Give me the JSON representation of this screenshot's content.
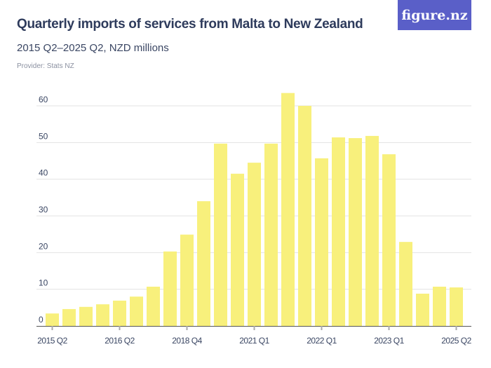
{
  "header": {
    "title": "Quarterly imports of services from Malta to New Zealand",
    "subtitle": "2015 Q2–2025 Q2, NZD millions",
    "provider": "Provider: Stats NZ",
    "logo": "figure.nz"
  },
  "colors": {
    "bar": "#f8f07c",
    "grid": "#e3e3e3",
    "axis": "#555555",
    "logo_bg": "#5a5fc8",
    "text": "#2e3b5c"
  },
  "chart_data": {
    "type": "bar",
    "title": "Quarterly imports of services from Malta to New Zealand",
    "subtitle": "2015 Q2–2025 Q2, NZD millions",
    "xlabel": "",
    "ylabel": "",
    "ylim": [
      0,
      65
    ],
    "yticks": [
      0,
      10,
      20,
      30,
      40,
      50,
      60
    ],
    "grid": true,
    "categories": [
      "2015 Q2",
      "",
      "",
      "",
      "2016 Q2",
      "",
      "",
      "",
      "2018 Q4",
      "",
      "",
      "",
      "2021 Q1",
      "",
      "",
      "",
      "2022 Q1",
      "",
      "",
      "",
      "2023 Q1",
      "",
      "",
      "",
      "2025 Q2"
    ],
    "values": [
      3.4,
      4.6,
      5.2,
      5.9,
      6.9,
      8.0,
      10.7,
      20.3,
      24.9,
      34.0,
      49.7,
      41.5,
      44.5,
      49.7,
      63.5,
      60.0,
      45.7,
      51.4,
      51.2,
      51.8,
      46.8,
      22.9,
      8.8,
      10.7,
      10.5
    ]
  }
}
